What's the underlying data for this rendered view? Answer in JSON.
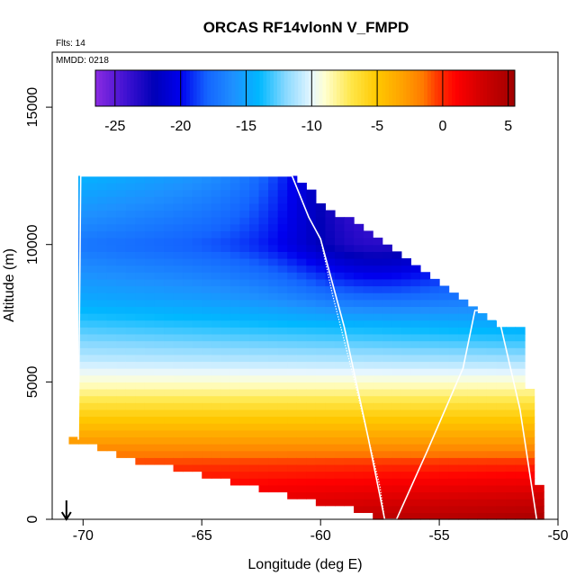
{
  "chart_data": {
    "type": "heatmap",
    "title": "ORCAS RF14vlonN V_FMPD",
    "xlabel": "Longitude (deg E)",
    "ylabel": "Altitude (m)",
    "xlim": [
      -71.3,
      -50
    ],
    "ylim": [
      0,
      17000
    ],
    "x_ticks": [
      -70,
      -65,
      -60,
      -55,
      -50
    ],
    "x_tick_labels": [
      "-70",
      "-65",
      "-60",
      "-55",
      "-50"
    ],
    "y_ticks": [
      0,
      5000,
      10000,
      15000
    ],
    "y_tick_labels": [
      "0",
      "5000",
      "10000",
      "15000"
    ],
    "annotation_flts": "Flts: 14",
    "annotation_mmdd": "MMDD: 0218",
    "colorbar": {
      "range": [
        -26.5,
        5.5
      ],
      "ticks": [
        -25,
        -20,
        -15,
        -10,
        -5,
        0,
        5
      ],
      "tick_labels": [
        "-25",
        "-20",
        "-15",
        "-10",
        "-5",
        "0",
        "5"
      ],
      "colors": [
        "#8B2BE2",
        "#3A10D0",
        "#0000B8",
        "#0000EE",
        "#1464FF",
        "#1E90FF",
        "#00B8FF",
        "#87D8FF",
        "#E6F6FF",
        "#FFFFD0",
        "#FFE74A",
        "#FFC800",
        "#FFA000",
        "#FF7A00",
        "#FF3C00",
        "#FF0000",
        "#D00000",
        "#A00000"
      ],
      "color_stops": [
        -26.5,
        -24,
        -22,
        -20,
        -18,
        -16,
        -14,
        -12,
        -10,
        -9,
        -7,
        -5,
        -3,
        -1.5,
        -0.5,
        1,
        3,
        5.5
      ]
    },
    "field": {
      "x_range": [
        -71,
        -50.9
      ],
      "lon_step": 0.4,
      "alt_step": 250,
      "top_profile": {
        "lon": [
          -70.7,
          -70.2,
          -70.1,
          -70,
          -61.2,
          -60.7,
          -60.3,
          -59.8,
          -59.2,
          -58.5,
          -58,
          -57.5,
          -57,
          -56.5,
          -56,
          -55.5,
          -55,
          -54.5,
          -54,
          -53.5,
          -53,
          -52.5,
          -52,
          -51.5,
          -51.2,
          -51.1,
          -51
        ],
        "alt": [
          2900,
          3000,
          7800,
          12500,
          12500,
          12200,
          11800,
          11500,
          11100,
          10800,
          10400,
          10100,
          9800,
          9500,
          9200,
          8900,
          8600,
          8300,
          8000,
          7700,
          7400,
          7100,
          7000,
          7000,
          4800,
          4600,
          1200
        ]
      },
      "bottom_profile": {
        "lon": [
          -71,
          -70,
          -69,
          -68,
          -67,
          -66,
          -65,
          -64,
          -63,
          -62,
          -61,
          -60,
          -59,
          -58.5,
          -58,
          -57.3,
          -57,
          -56,
          -55,
          -54,
          -53,
          -52,
          -51
        ],
        "alt": [
          2900,
          2800,
          2500,
          2200,
          2000,
          1800,
          1600,
          1400,
          1200,
          1000,
          800,
          600,
          450,
          300,
          200,
          0,
          0,
          0,
          0,
          0,
          0,
          0,
          0
        ]
      },
      "values_description": "vertical wind component field (V_FMPD, m/s)",
      "levels": [
        {
          "alt": 0,
          "value": 2
        },
        {
          "alt": 2000,
          "value": -0.5
        },
        {
          "alt": 4000,
          "value": -6
        },
        {
          "alt": 6000,
          "value": -12
        },
        {
          "alt": 8000,
          "value": -17
        },
        {
          "alt": 10000,
          "value": -21
        },
        {
          "alt": 12500,
          "value": -20
        }
      ]
    },
    "flight_track": {
      "lon": [
        -70.2,
        -70.1,
        -61.2,
        -60.5,
        -60,
        -59,
        -58,
        -57.3,
        -56.8,
        -55.5,
        -54,
        -53.5,
        -52.8,
        -52.4,
        -51.6,
        -50.9
      ],
      "alt": [
        2900,
        12500,
        12500,
        11000,
        10200,
        7000,
        3000,
        0,
        0,
        2500,
        5500,
        7600,
        7600,
        7000,
        4000,
        0
      ]
    },
    "descent_path": {
      "lon": [
        -61.2,
        -60.5,
        -60,
        -59.5,
        -59,
        -58.5,
        -58,
        -57.5,
        -57.3
      ],
      "alt": [
        12500,
        11000,
        10200,
        8200,
        6500,
        4800,
        3000,
        1200,
        0
      ]
    },
    "arrow_lon": -70.7
  }
}
